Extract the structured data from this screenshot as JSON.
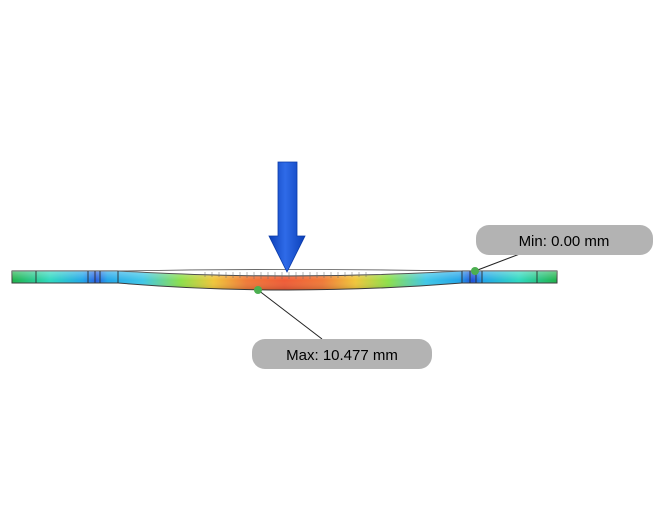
{
  "min_label": {
    "text": "Min: 0.00 mm"
  },
  "max_label": {
    "text": "Max: 10.477 mm"
  },
  "colors": {
    "background": "#ffffff",
    "arrow_light": "#2f6be8",
    "arrow_dark": "#0b3fb8",
    "beam_outline": "#3a3a3a",
    "probe_marker": "#4caf50",
    "callout_fill": "#b3b3b3",
    "leader_line": "#222222",
    "contour_scale": [
      "#1fb24a",
      "#2fd9c0",
      "#22a6e8",
      "#2a5fe0",
      "#1f4fd8",
      "#3fc7e8",
      "#8de04a",
      "#f0c63a",
      "#f07a38",
      "#ef5b36"
    ]
  },
  "icons": {
    "load_arrow": "down-arrow-icon",
    "probe": "probe-dot-icon"
  }
}
